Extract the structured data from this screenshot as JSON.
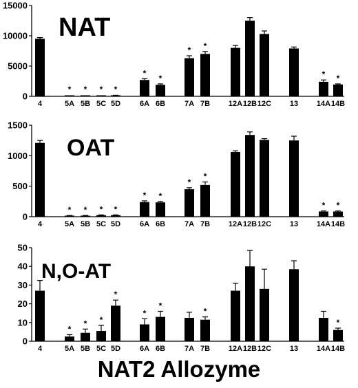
{
  "chart_data": [
    {
      "type": "bar",
      "panel_label": "NAT",
      "ylim": [
        0,
        15000
      ],
      "yticks": [
        0,
        5000,
        10000,
        15000
      ],
      "categories": [
        "4",
        "5A",
        "5B",
        "5C",
        "5D",
        "6A",
        "6B",
        "7A",
        "7B",
        "12A",
        "12B",
        "12C",
        "13",
        "14A",
        "14B"
      ],
      "values": [
        9500,
        60,
        80,
        70,
        150,
        2700,
        1900,
        6300,
        7000,
        8000,
        12500,
        10300,
        7900,
        2400,
        1950
      ],
      "errors": [
        200,
        20,
        20,
        20,
        30,
        200,
        150,
        400,
        400,
        400,
        500,
        500,
        250,
        300,
        100
      ],
      "significant": [
        false,
        true,
        true,
        true,
        true,
        true,
        true,
        true,
        true,
        false,
        false,
        false,
        false,
        true,
        true
      ],
      "significance_marker": "*",
      "bar_color": "#000000"
    },
    {
      "type": "bar",
      "panel_label": "OAT",
      "ylim": [
        0,
        1500
      ],
      "yticks": [
        0,
        500,
        1000,
        1500
      ],
      "categories": [
        "4",
        "5A",
        "5B",
        "5C",
        "5D",
        "6A",
        "6B",
        "7A",
        "7B",
        "12A",
        "12B",
        "12C",
        "13",
        "14A",
        "14B"
      ],
      "values": [
        1210,
        15,
        15,
        25,
        25,
        240,
        235,
        450,
        520,
        1060,
        1340,
        1260,
        1250,
        85,
        85
      ],
      "errors": [
        40,
        5,
        5,
        5,
        5,
        20,
        15,
        25,
        50,
        20,
        50,
        20,
        70,
        10,
        10
      ],
      "significant": [
        false,
        true,
        true,
        true,
        true,
        true,
        true,
        true,
        true,
        false,
        false,
        false,
        false,
        true,
        true
      ],
      "significance_marker": "*",
      "bar_color": "#000000"
    },
    {
      "type": "bar",
      "panel_label": "N,O-AT",
      "ylim": [
        0,
        50
      ],
      "yticks": [
        0,
        10,
        20,
        30,
        40,
        50
      ],
      "categories": [
        "4",
        "5A",
        "5B",
        "5C",
        "5D",
        "6A",
        "6B",
        "7A",
        "7B",
        "12A",
        "12B",
        "12C",
        "13",
        "14A",
        "14B"
      ],
      "values": [
        27,
        2.5,
        4.5,
        5.5,
        19,
        9,
        13,
        12.5,
        11.5,
        27,
        40,
        28,
        38.5,
        12.5,
        6
      ],
      "errors": [
        5.5,
        1,
        2,
        3,
        3,
        3,
        3,
        3,
        1.5,
        4,
        8.5,
        10.5,
        4.5,
        3.5,
        1
      ],
      "significant": [
        false,
        true,
        true,
        true,
        true,
        true,
        true,
        false,
        true,
        false,
        false,
        false,
        false,
        false,
        true
      ],
      "significance_marker": "*",
      "bar_color": "#000000"
    }
  ],
  "xlabel": "NAT2 Allozyme"
}
